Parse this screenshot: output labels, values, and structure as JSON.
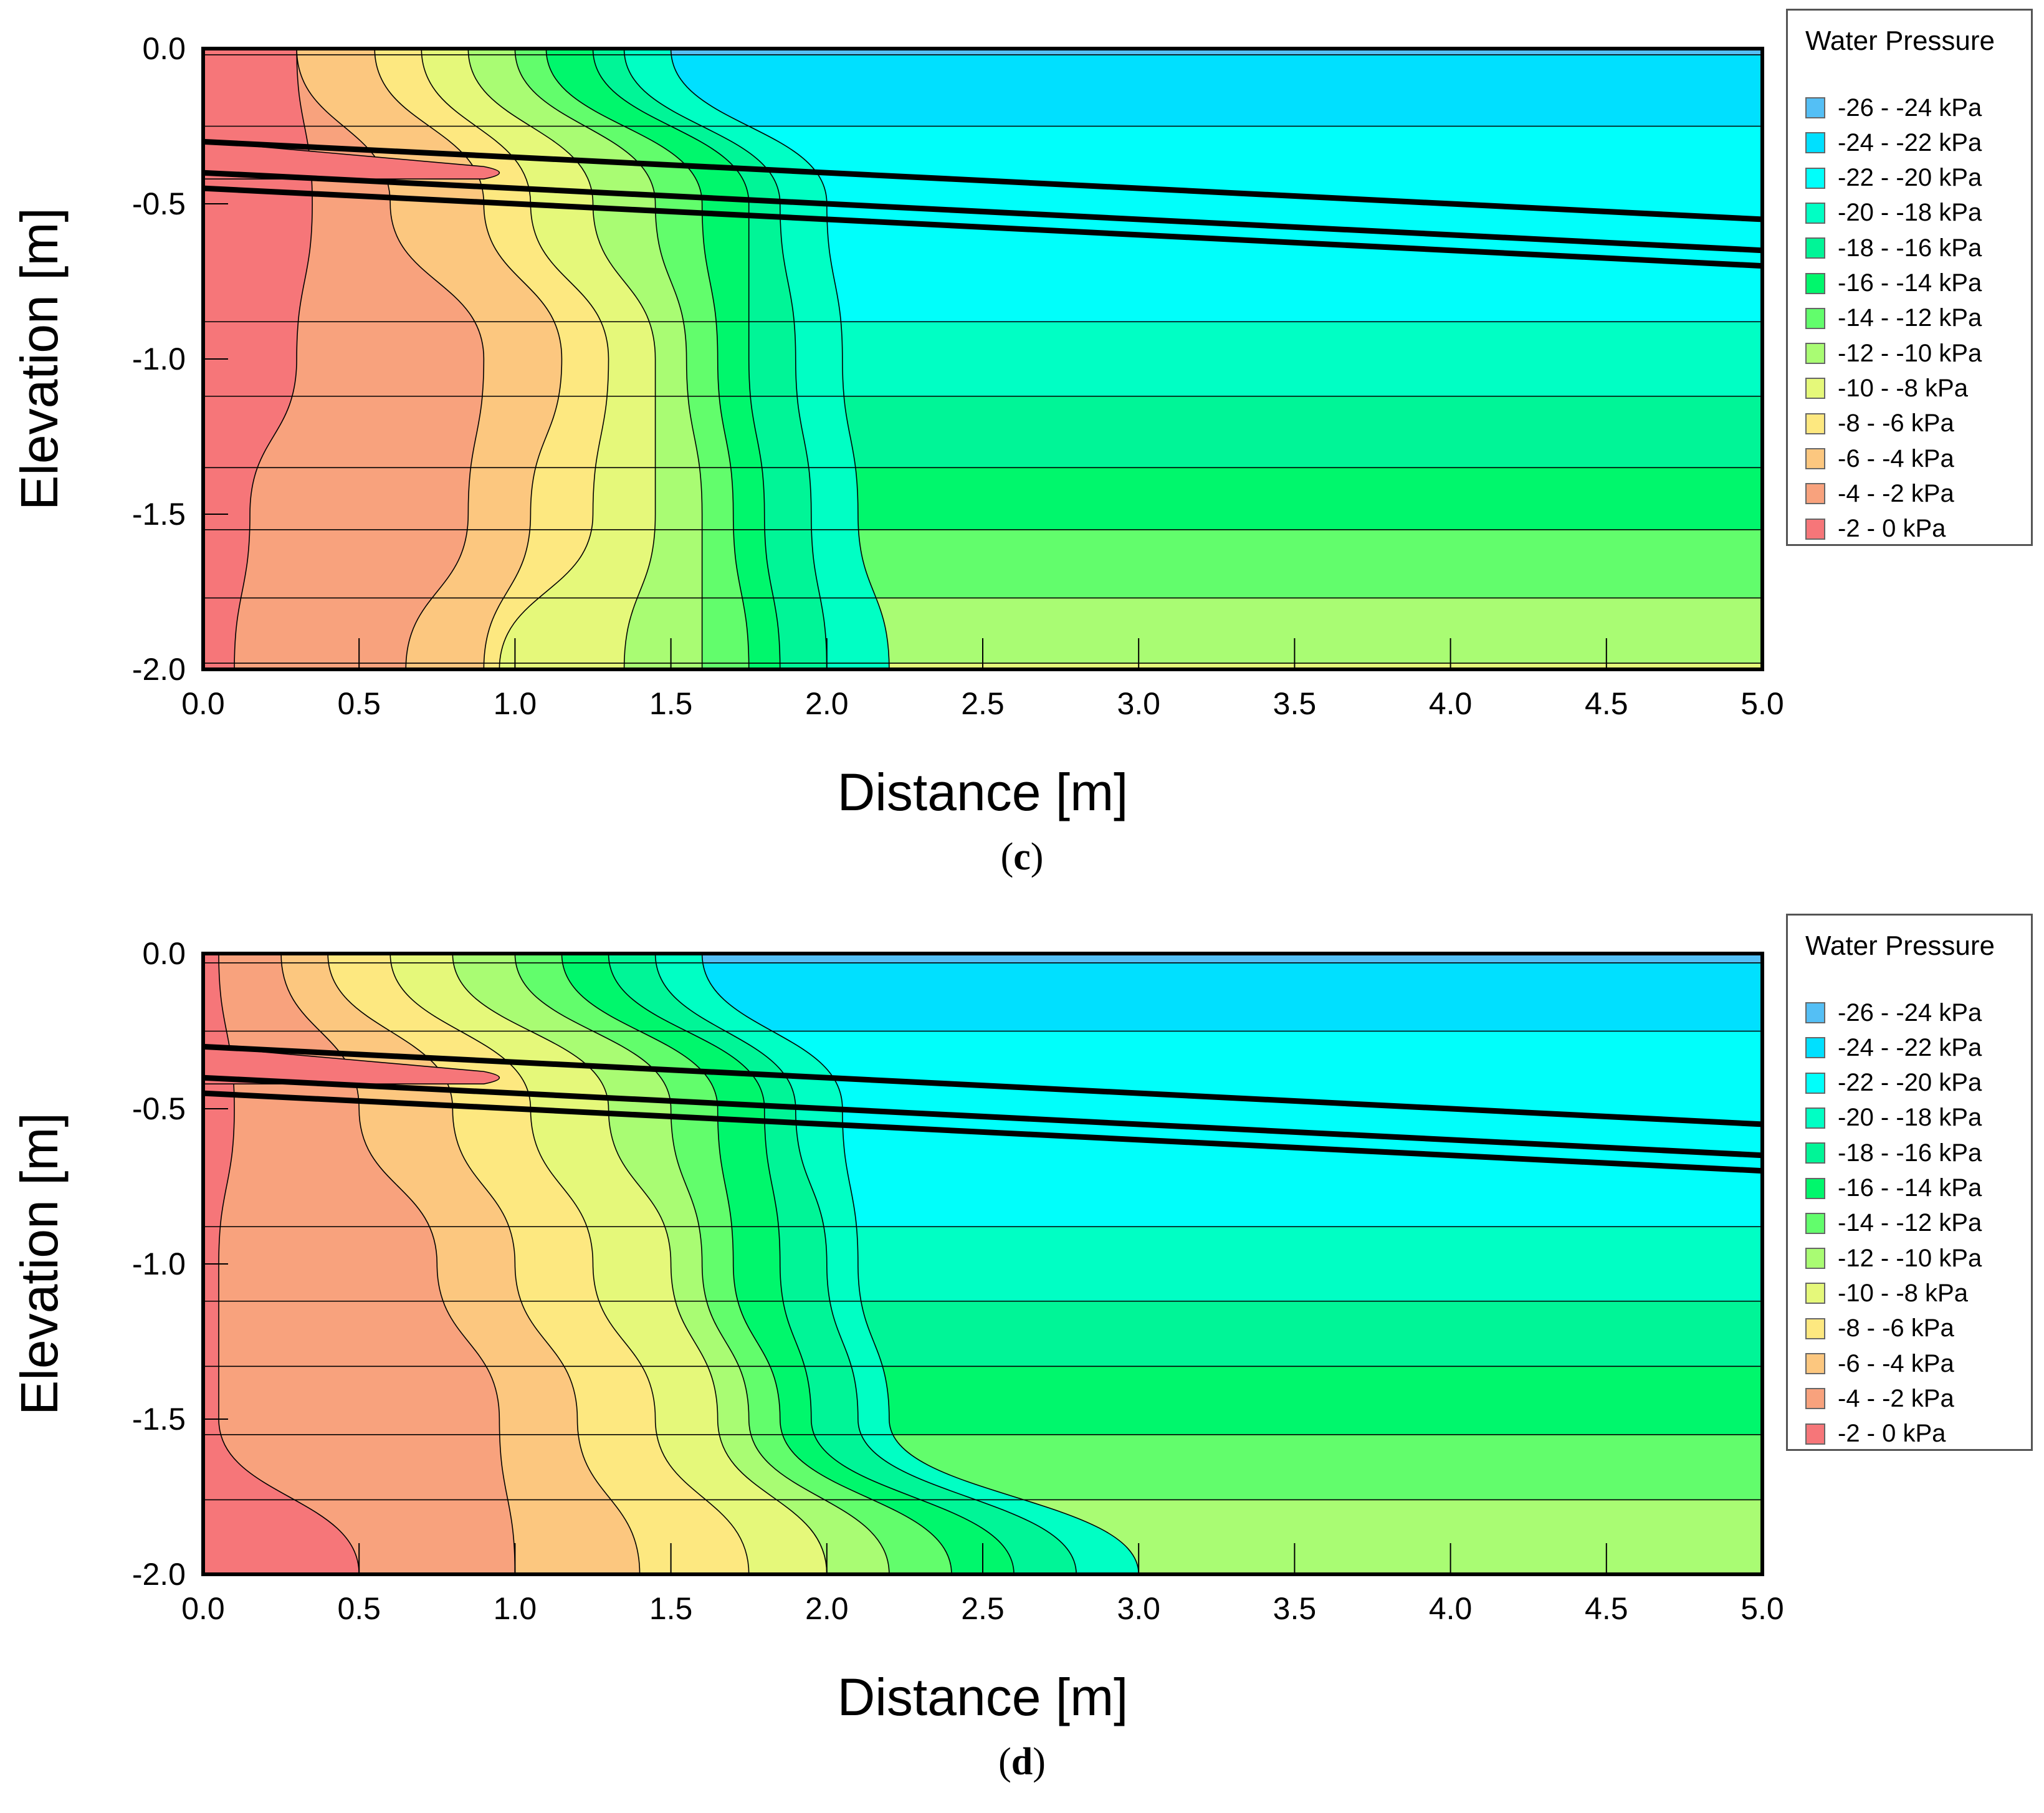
{
  "chart_data": [
    {
      "type": "heatmap",
      "panel_label": "c",
      "title": "",
      "xlabel": "Distance [m]",
      "ylabel": "Elevation [m]",
      "xlim": [
        0.0,
        5.0
      ],
      "ylim": [
        -2.0,
        0.0
      ],
      "x_ticks": [
        "0.0",
        "0.5",
        "1.0",
        "1.5",
        "2.0",
        "2.5",
        "3.0",
        "3.5",
        "4.0",
        "4.5",
        "5.0"
      ],
      "y_ticks": [
        "0.0",
        "-0.5",
        "-1.0",
        "-1.5",
        "-2.0"
      ],
      "layer_lines": [
        {
          "name": "surface-layer-top",
          "x": [
            0.0,
            5.0
          ],
          "y": [
            -0.3,
            -0.55
          ]
        },
        {
          "name": "surface-layer-mid",
          "x": [
            0.0,
            5.0
          ],
          "y": [
            -0.4,
            -0.65
          ]
        },
        {
          "name": "surface-layer-bottom",
          "x": [
            0.0,
            5.0
          ],
          "y": [
            -0.45,
            -0.7
          ]
        }
      ],
      "far_field_bands": [
        {
          "from": 0.0,
          "to": -0.02,
          "range": "-26 - -24 kPa"
        },
        {
          "from": -0.02,
          "to": -0.25,
          "range": "-24 - -22 kPa"
        },
        {
          "from": -0.25,
          "to": -0.88,
          "range": "-22 - -20 kPa"
        },
        {
          "from": -0.88,
          "to": -1.12,
          "range": "-20 - -18 kPa"
        },
        {
          "from": -1.12,
          "to": -1.35,
          "range": "-18 - -16 kPa"
        },
        {
          "from": -1.35,
          "to": -1.55,
          "range": "-16 - -14 kPa"
        },
        {
          "from": -1.55,
          "to": -1.77,
          "range": "-14 - -12 kPa"
        },
        {
          "from": -1.77,
          "to": -1.98,
          "range": "-12 - -10 kPa"
        },
        {
          "from": -1.98,
          "to": -2.0,
          "range": "-10 - -8 kPa"
        }
      ],
      "contour_front_x_at_depth": [
        {
          "range_boundary": "-4 kPa",
          "x": [
            0.3,
            0.35,
            0.3,
            0.15,
            0.1
          ]
        },
        {
          "range_boundary": "-6 kPa",
          "x": [
            0.3,
            0.6,
            0.9,
            0.85,
            0.65
          ]
        },
        {
          "range_boundary": "-8 kPa",
          "x": [
            0.55,
            0.9,
            1.15,
            1.05,
            0.9
          ]
        },
        {
          "range_boundary": "-10 kPa",
          "x": [
            0.7,
            1.05,
            1.3,
            1.25,
            0.95
          ]
        },
        {
          "range_boundary": "-12 kPa",
          "x": [
            0.85,
            1.25,
            1.45,
            1.45,
            1.35
          ]
        },
        {
          "range_boundary": "-14 kPa",
          "x": [
            1.0,
            1.45,
            1.55,
            1.6,
            1.6
          ]
        },
        {
          "range_boundary": "-16 kPa",
          "x": [
            1.1,
            1.6,
            1.65,
            1.7,
            1.75
          ]
        },
        {
          "range_boundary": "-18 kPa",
          "x": [
            1.25,
            1.75,
            1.75,
            1.8,
            1.85
          ]
        },
        {
          "range_boundary": "-20 kPa",
          "x": [
            1.35,
            1.85,
            1.9,
            1.95,
            2.0
          ]
        },
        {
          "range_boundary": "-22 kPa",
          "x": [
            1.5,
            2.0,
            2.05,
            2.1,
            2.2
          ]
        }
      ],
      "contour_depths": [
        0.0,
        -0.5,
        -1.0,
        -1.5,
        -2.0
      ]
    },
    {
      "type": "heatmap",
      "panel_label": "d",
      "title": "",
      "xlabel": "Distance [m]",
      "ylabel": "Elevation [m]",
      "xlim": [
        0.0,
        5.0
      ],
      "ylim": [
        -2.0,
        0.0
      ],
      "x_ticks": [
        "0.0",
        "0.5",
        "1.0",
        "1.5",
        "2.0",
        "2.5",
        "3.0",
        "3.5",
        "4.0",
        "4.5",
        "5.0"
      ],
      "y_ticks": [
        "0.0",
        "-0.5",
        "-1.0",
        "-1.5",
        "-2.0"
      ],
      "layer_lines": [
        {
          "name": "surface-layer-top",
          "x": [
            0.0,
            5.0
          ],
          "y": [
            -0.3,
            -0.55
          ]
        },
        {
          "name": "surface-layer-mid",
          "x": [
            0.0,
            5.0
          ],
          "y": [
            -0.4,
            -0.65
          ]
        },
        {
          "name": "surface-layer-bottom",
          "x": [
            0.0,
            5.0
          ],
          "y": [
            -0.45,
            -0.7
          ]
        }
      ],
      "far_field_bands": [
        {
          "from": 0.0,
          "to": -0.03,
          "range": "-26 - -24 kPa"
        },
        {
          "from": -0.03,
          "to": -0.25,
          "range": "-24 - -22 kPa"
        },
        {
          "from": -0.25,
          "to": -0.88,
          "range": "-22 - -20 kPa"
        },
        {
          "from": -0.88,
          "to": -1.12,
          "range": "-20 - -18 kPa"
        },
        {
          "from": -1.12,
          "to": -1.33,
          "range": "-18 - -16 kPa"
        },
        {
          "from": -1.33,
          "to": -1.55,
          "range": "-16 - -14 kPa"
        },
        {
          "from": -1.55,
          "to": -1.76,
          "range": "-14 - -12 kPa"
        },
        {
          "from": -1.76,
          "to": -2.0,
          "range": "-12 - -10 kPa"
        }
      ],
      "contour_front_x_at_depth": [
        {
          "range_boundary": "-4 kPa",
          "x": [
            0.05,
            0.1,
            0.05,
            0.05,
            0.5
          ]
        },
        {
          "range_boundary": "-6 kPa",
          "x": [
            0.25,
            0.5,
            0.75,
            0.95,
            1.0
          ]
        },
        {
          "range_boundary": "-8 kPa",
          "x": [
            0.4,
            0.8,
            1.0,
            1.2,
            1.4
          ]
        },
        {
          "range_boundary": "-10 kPa",
          "x": [
            0.6,
            1.05,
            1.25,
            1.45,
            1.75
          ]
        },
        {
          "range_boundary": "-12 kPa",
          "x": [
            0.8,
            1.3,
            1.5,
            1.65,
            2.0
          ]
        },
        {
          "range_boundary": "-14 kPa",
          "x": [
            1.0,
            1.5,
            1.6,
            1.75,
            2.2
          ]
        },
        {
          "range_boundary": "-16 kPa",
          "x": [
            1.15,
            1.65,
            1.7,
            1.85,
            2.4
          ]
        },
        {
          "range_boundary": "-18 kPa",
          "x": [
            1.3,
            1.8,
            1.85,
            1.95,
            2.6
          ]
        },
        {
          "range_boundary": "-20 kPa",
          "x": [
            1.45,
            1.9,
            2.0,
            2.1,
            2.8
          ]
        },
        {
          "range_boundary": "-22 kPa",
          "x": [
            1.6,
            2.05,
            2.1,
            2.2,
            3.0
          ]
        }
      ],
      "contour_depths": [
        0.0,
        -0.5,
        -1.0,
        -1.5,
        -2.0
      ]
    }
  ],
  "legend": {
    "title": "Water Pressure",
    "entries": [
      {
        "label": "-26 - -24 kPa",
        "color": "#54bff5"
      },
      {
        "label": "-24 - -22 kPa",
        "color": "#00e0ff"
      },
      {
        "label": "-22 - -20 kPa",
        "color": "#00fffb"
      },
      {
        "label": "-20 - -18 kPa",
        "color": "#00ffc4"
      },
      {
        "label": "-18 - -16 kPa",
        "color": "#00f597"
      },
      {
        "label": "-16 - -14 kPa",
        "color": "#00f76c"
      },
      {
        "label": "-14 - -12 kPa",
        "color": "#62fd6c"
      },
      {
        "label": "-12 - -10 kPa",
        "color": "#a9fc73"
      },
      {
        "label": "-10 - -8 kPa",
        "color": "#e5f87a"
      },
      {
        "label": "-8 - -6 kPa",
        "color": "#fde880"
      },
      {
        "label": "-6 - -4 kPa",
        "color": "#fcc77f"
      },
      {
        "label": "-4 - -2 kPa",
        "color": "#f8a27d"
      },
      {
        "label": "-2 - 0 kPa",
        "color": "#f67679"
      }
    ]
  },
  "captions": {
    "c": "c",
    "d": "d"
  }
}
